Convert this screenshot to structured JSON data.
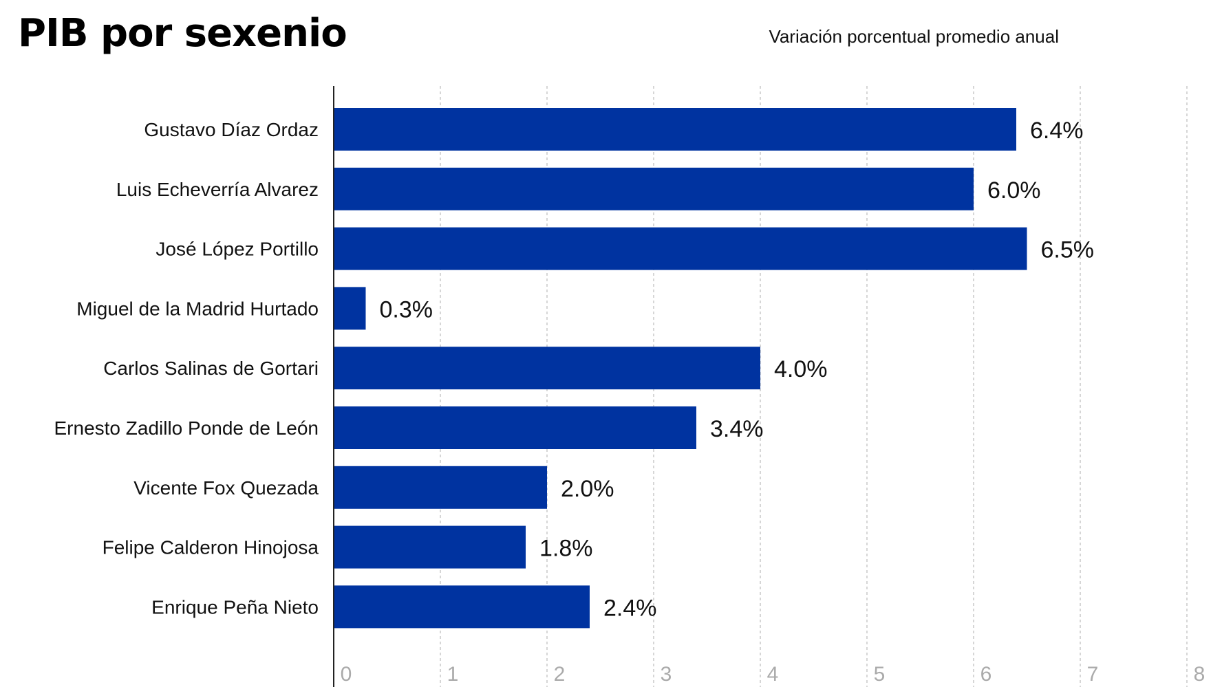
{
  "title": "PIB por sexenio",
  "subtitle": "Variación porcentual promedio anual",
  "colors": {
    "bar": "#0033a0",
    "grid": "#c8c8c8",
    "axis": "#222222",
    "tick_text": "#aaaaaa"
  },
  "chart_data": {
    "type": "bar",
    "orientation": "horizontal",
    "categories": [
      "Gustavo Díaz Ordaz",
      "Luis Echeverría Alvarez",
      "José López Portillo",
      "Miguel de la Madrid Hurtado",
      "Carlos Salinas de Gortari",
      "Ernesto Zadillo Ponde de León",
      "Vicente Fox Quezada",
      "Felipe Calderon Hinojosa",
      "Enrique Peña Nieto"
    ],
    "values": [
      6.4,
      6.0,
      6.5,
      0.3,
      4.0,
      3.4,
      2.0,
      1.8,
      2.4
    ],
    "value_labels": [
      "6.4%",
      "6.0%",
      "6.5%",
      "0.3%",
      "4.0%",
      "3.4%",
      "2.0%",
      "1.8%",
      "2.4%"
    ],
    "xticks": [
      "0",
      "1",
      "2",
      "3",
      "4",
      "5",
      "6",
      "7",
      "8"
    ],
    "xlim": [
      0,
      8
    ],
    "grid": true,
    "gridlines": "vertical-dashed"
  }
}
